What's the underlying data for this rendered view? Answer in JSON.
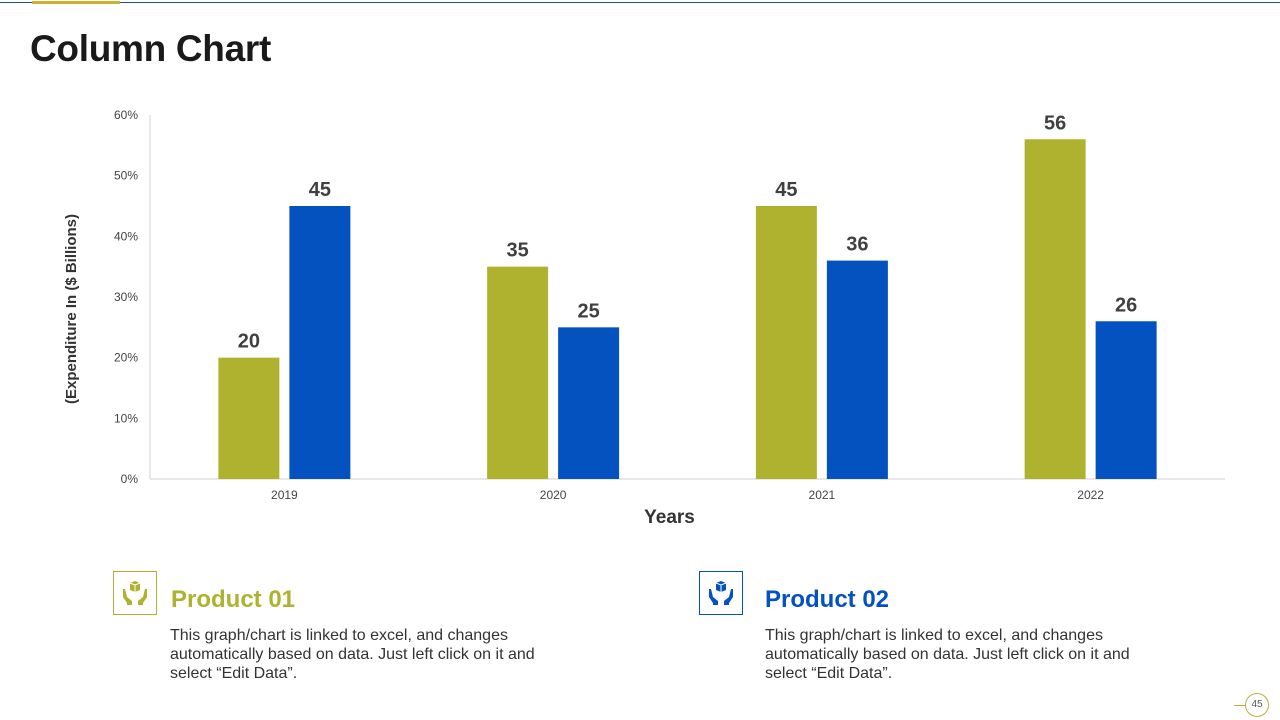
{
  "slide": {
    "title": "Column Chart",
    "page_number": "45"
  },
  "colors": {
    "product01": "#aeb22e",
    "product02": "#0451c0",
    "title_line": "#1f4e9c",
    "title_accent": "#c9b330"
  },
  "chart_data": {
    "type": "bar",
    "categories": [
      "2019",
      "2020",
      "2021",
      "2022"
    ],
    "series": [
      {
        "values": [
          20,
          35,
          45,
          56
        ],
        "color": "#aeb22e"
      },
      {
        "values": [
          45,
          25,
          36,
          26
        ],
        "color": "#0451c0"
      }
    ],
    "y_ticks": [
      "0%",
      "10%",
      "20%",
      "30%",
      "40%",
      "50%",
      "60%"
    ],
    "ylim": [
      0,
      60
    ],
    "xlabel": "Years",
    "ylabel": "(Expenditure In ($ Billions)",
    "grid": false,
    "data_labels": true
  },
  "products": [
    {
      "title": "Product 01",
      "description": "This graph/chart is linked to excel, and changes automatically based on data. Just left click on it and select “Edit Data”.",
      "color": "#aeb22e",
      "icon": "hands-holding-box-icon"
    },
    {
      "title": "Product 02",
      "description": "This graph/chart is linked to excel, and changes automatically based on data. Just left click on it and select “Edit Data”.",
      "color": "#0451c0",
      "icon": "hands-holding-box-icon"
    }
  ]
}
